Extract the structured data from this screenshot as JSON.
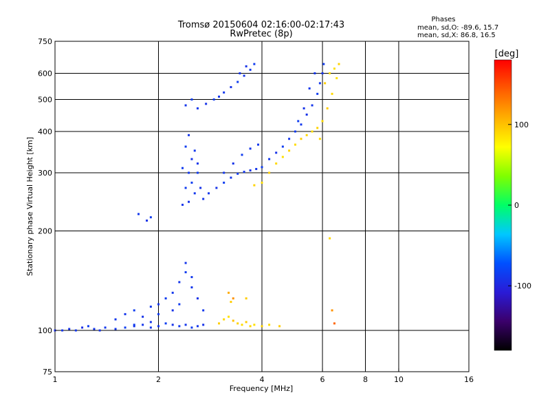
{
  "title_line1": "Tromsø 20150604 02:16:00-02:17:43",
  "title_line2": "RwPretec (8p)",
  "stats": {
    "heading": "Phases",
    "o_line": "mean, sd,O:  -89.6, 15.7",
    "x_line": "mean, sd,X:   86.8, 16.5"
  },
  "colorbar": {
    "label": "[deg]",
    "ticks": [
      100,
      0,
      -100
    ],
    "range": [
      -180,
      180
    ],
    "colors": [
      "#000000",
      "#3b006b",
      "#2a1bd6",
      "#0050ff",
      "#00c8ff",
      "#00ff66",
      "#7fff00",
      "#ffff00",
      "#ffb000",
      "#ff5a00",
      "#ff0000"
    ]
  },
  "chart_data": {
    "type": "scatter",
    "title": "Tromsø 20150604 02:16:00-02:17:43",
    "subtitle": "RwPretec (8p)",
    "xlabel": "Frequency [MHz]",
    "ylabel": "Stationary phase Virtual Height [km]",
    "x_scale": "log",
    "y_scale": "log",
    "xlim": [
      1,
      16
    ],
    "ylim": [
      75,
      750
    ],
    "x_ticks": [
      1,
      2,
      4,
      6,
      8,
      10,
      16
    ],
    "y_ticks": [
      75,
      100,
      200,
      300,
      400,
      500,
      600,
      750
    ],
    "x_grid": [
      2,
      4,
      6,
      8,
      10
    ],
    "y_grid": [
      100,
      200,
      300,
      400,
      500,
      600
    ],
    "grid": true,
    "color_encoding": "phase in degrees",
    "series": [
      {
        "points": [
          [
            1.0,
            100,
            -95
          ],
          [
            1.05,
            100,
            -90
          ],
          [
            1.1,
            101,
            -92
          ],
          [
            1.15,
            100,
            -88
          ],
          [
            1.2,
            102,
            -95
          ],
          [
            1.25,
            103,
            -85
          ],
          [
            1.3,
            101,
            -90
          ],
          [
            1.35,
            100,
            -92
          ],
          [
            1.4,
            102,
            -88
          ],
          [
            1.5,
            101,
            -90
          ],
          [
            1.6,
            102,
            -85
          ],
          [
            1.7,
            103,
            -92
          ],
          [
            1.8,
            104,
            -90
          ],
          [
            1.9,
            102,
            -88
          ],
          [
            2.0,
            103,
            -90
          ],
          [
            2.1,
            105,
            -85
          ],
          [
            2.2,
            104,
            -92
          ],
          [
            2.3,
            103,
            -88
          ],
          [
            2.4,
            104,
            -90
          ],
          [
            2.5,
            102,
            -86
          ],
          [
            2.6,
            103,
            -90
          ],
          [
            2.7,
            104,
            -92
          ],
          [
            1.5,
            108,
            -88
          ],
          [
            1.6,
            112,
            -90
          ],
          [
            1.7,
            115,
            -85
          ],
          [
            1.8,
            110,
            -92
          ],
          [
            1.9,
            118,
            -87
          ],
          [
            2.0,
            120,
            -90
          ],
          [
            2.1,
            125,
            -85
          ],
          [
            2.2,
            130,
            -88
          ],
          [
            2.3,
            140,
            -90
          ],
          [
            2.4,
            150,
            -85
          ],
          [
            2.5,
            135,
            -90
          ],
          [
            2.2,
            115,
            -92
          ],
          [
            2.3,
            120,
            -86
          ],
          [
            2.5,
            145,
            -88
          ],
          [
            2.4,
            160,
            -90
          ],
          [
            2.0,
            112,
            -85
          ],
          [
            2.6,
            125,
            -92
          ],
          [
            2.7,
            115,
            -88
          ],
          [
            1.9,
            106,
            -90
          ],
          [
            1.7,
            104,
            -86
          ],
          [
            1.75,
            225,
            -88
          ],
          [
            1.85,
            215,
            -92
          ],
          [
            1.9,
            220,
            -85
          ],
          [
            2.35,
            240,
            -90
          ],
          [
            2.4,
            270,
            -86
          ],
          [
            2.45,
            300,
            -88
          ],
          [
            2.5,
            330,
            -92
          ],
          [
            2.4,
            360,
            -85
          ],
          [
            2.45,
            390,
            -90
          ],
          [
            2.55,
            350,
            -88
          ],
          [
            2.6,
            300,
            -86
          ],
          [
            2.65,
            270,
            -92
          ],
          [
            2.7,
            250,
            -90
          ],
          [
            2.5,
            280,
            -85
          ],
          [
            2.55,
            260,
            -88
          ],
          [
            2.6,
            320,
            -90
          ],
          [
            2.35,
            310,
            -86
          ],
          [
            2.45,
            245,
            -92
          ],
          [
            2.8,
            260,
            -88
          ],
          [
            2.95,
            270,
            -92
          ],
          [
            3.1,
            280,
            -85
          ],
          [
            3.25,
            290,
            -90
          ],
          [
            3.4,
            298,
            -86
          ],
          [
            3.55,
            302,
            -88
          ],
          [
            3.7,
            305,
            -92
          ],
          [
            3.85,
            308,
            -90
          ],
          [
            4.0,
            312,
            -85
          ],
          [
            3.1,
            300,
            -88
          ],
          [
            3.3,
            320,
            -92
          ],
          [
            3.5,
            340,
            -86
          ],
          [
            3.7,
            355,
            -90
          ],
          [
            3.9,
            365,
            -88
          ],
          [
            2.4,
            480,
            -90
          ],
          [
            2.5,
            500,
            -85
          ],
          [
            2.6,
            470,
            -88
          ],
          [
            2.75,
            485,
            -92
          ],
          [
            2.9,
            500,
            -86
          ],
          [
            3.0,
            510,
            -90
          ],
          [
            3.1,
            525,
            -88
          ],
          [
            3.25,
            545,
            -92
          ],
          [
            3.4,
            565,
            -85
          ],
          [
            3.55,
            590,
            -90
          ],
          [
            3.7,
            615,
            -88
          ],
          [
            3.8,
            640,
            -86
          ],
          [
            3.6,
            630,
            -92
          ],
          [
            3.45,
            600,
            -90
          ],
          [
            4.2,
            330,
            -88
          ],
          [
            4.4,
            345,
            -92
          ],
          [
            4.6,
            360,
            -85
          ],
          [
            4.8,
            380,
            -90
          ],
          [
            5.0,
            400,
            -86
          ],
          [
            5.2,
            420,
            -88
          ],
          [
            5.4,
            450,
            -92
          ],
          [
            5.6,
            480,
            -90
          ],
          [
            5.8,
            520,
            -85
          ],
          [
            5.9,
            560,
            -88
          ],
          [
            6.0,
            600,
            -92
          ],
          [
            6.05,
            640,
            -86
          ],
          [
            5.7,
            600,
            -90
          ],
          [
            5.5,
            540,
            -88
          ],
          [
            5.3,
            470,
            -92
          ],
          [
            5.1,
            430,
            -85
          ]
        ]
      },
      {
        "points": [
          [
            3.0,
            105,
            95
          ],
          [
            3.1,
            108,
            90
          ],
          [
            3.2,
            110,
            85
          ],
          [
            3.3,
            107,
            100
          ],
          [
            3.4,
            105,
            92
          ],
          [
            3.5,
            104,
            88
          ],
          [
            3.6,
            106,
            95
          ],
          [
            3.7,
            103,
            90
          ],
          [
            3.8,
            104,
            86
          ],
          [
            4.0,
            103,
            92
          ],
          [
            4.2,
            104,
            88
          ],
          [
            4.5,
            103,
            95
          ],
          [
            3.2,
            130,
            110
          ],
          [
            3.25,
            122,
            95
          ],
          [
            3.3,
            125,
            120
          ],
          [
            3.6,
            125,
            95
          ],
          [
            3.8,
            275,
            92
          ],
          [
            4.0,
            280,
            88
          ],
          [
            4.2,
            300,
            95
          ],
          [
            4.4,
            320,
            90
          ],
          [
            4.6,
            335,
            86
          ],
          [
            4.8,
            350,
            92
          ],
          [
            5.0,
            365,
            88
          ],
          [
            5.2,
            380,
            95
          ],
          [
            5.4,
            390,
            90
          ],
          [
            5.6,
            400,
            86
          ],
          [
            5.8,
            410,
            92
          ],
          [
            6.0,
            430,
            88
          ],
          [
            6.2,
            470,
            95
          ],
          [
            6.4,
            520,
            90
          ],
          [
            6.6,
            580,
            86
          ],
          [
            6.7,
            640,
            92
          ],
          [
            6.3,
            600,
            88
          ],
          [
            6.1,
            560,
            95
          ],
          [
            5.9,
            380,
            90
          ],
          [
            6.5,
            620,
            86
          ],
          [
            6.3,
            190,
            90
          ],
          [
            6.4,
            115,
            120
          ],
          [
            6.5,
            105,
            140
          ]
        ]
      }
    ]
  }
}
